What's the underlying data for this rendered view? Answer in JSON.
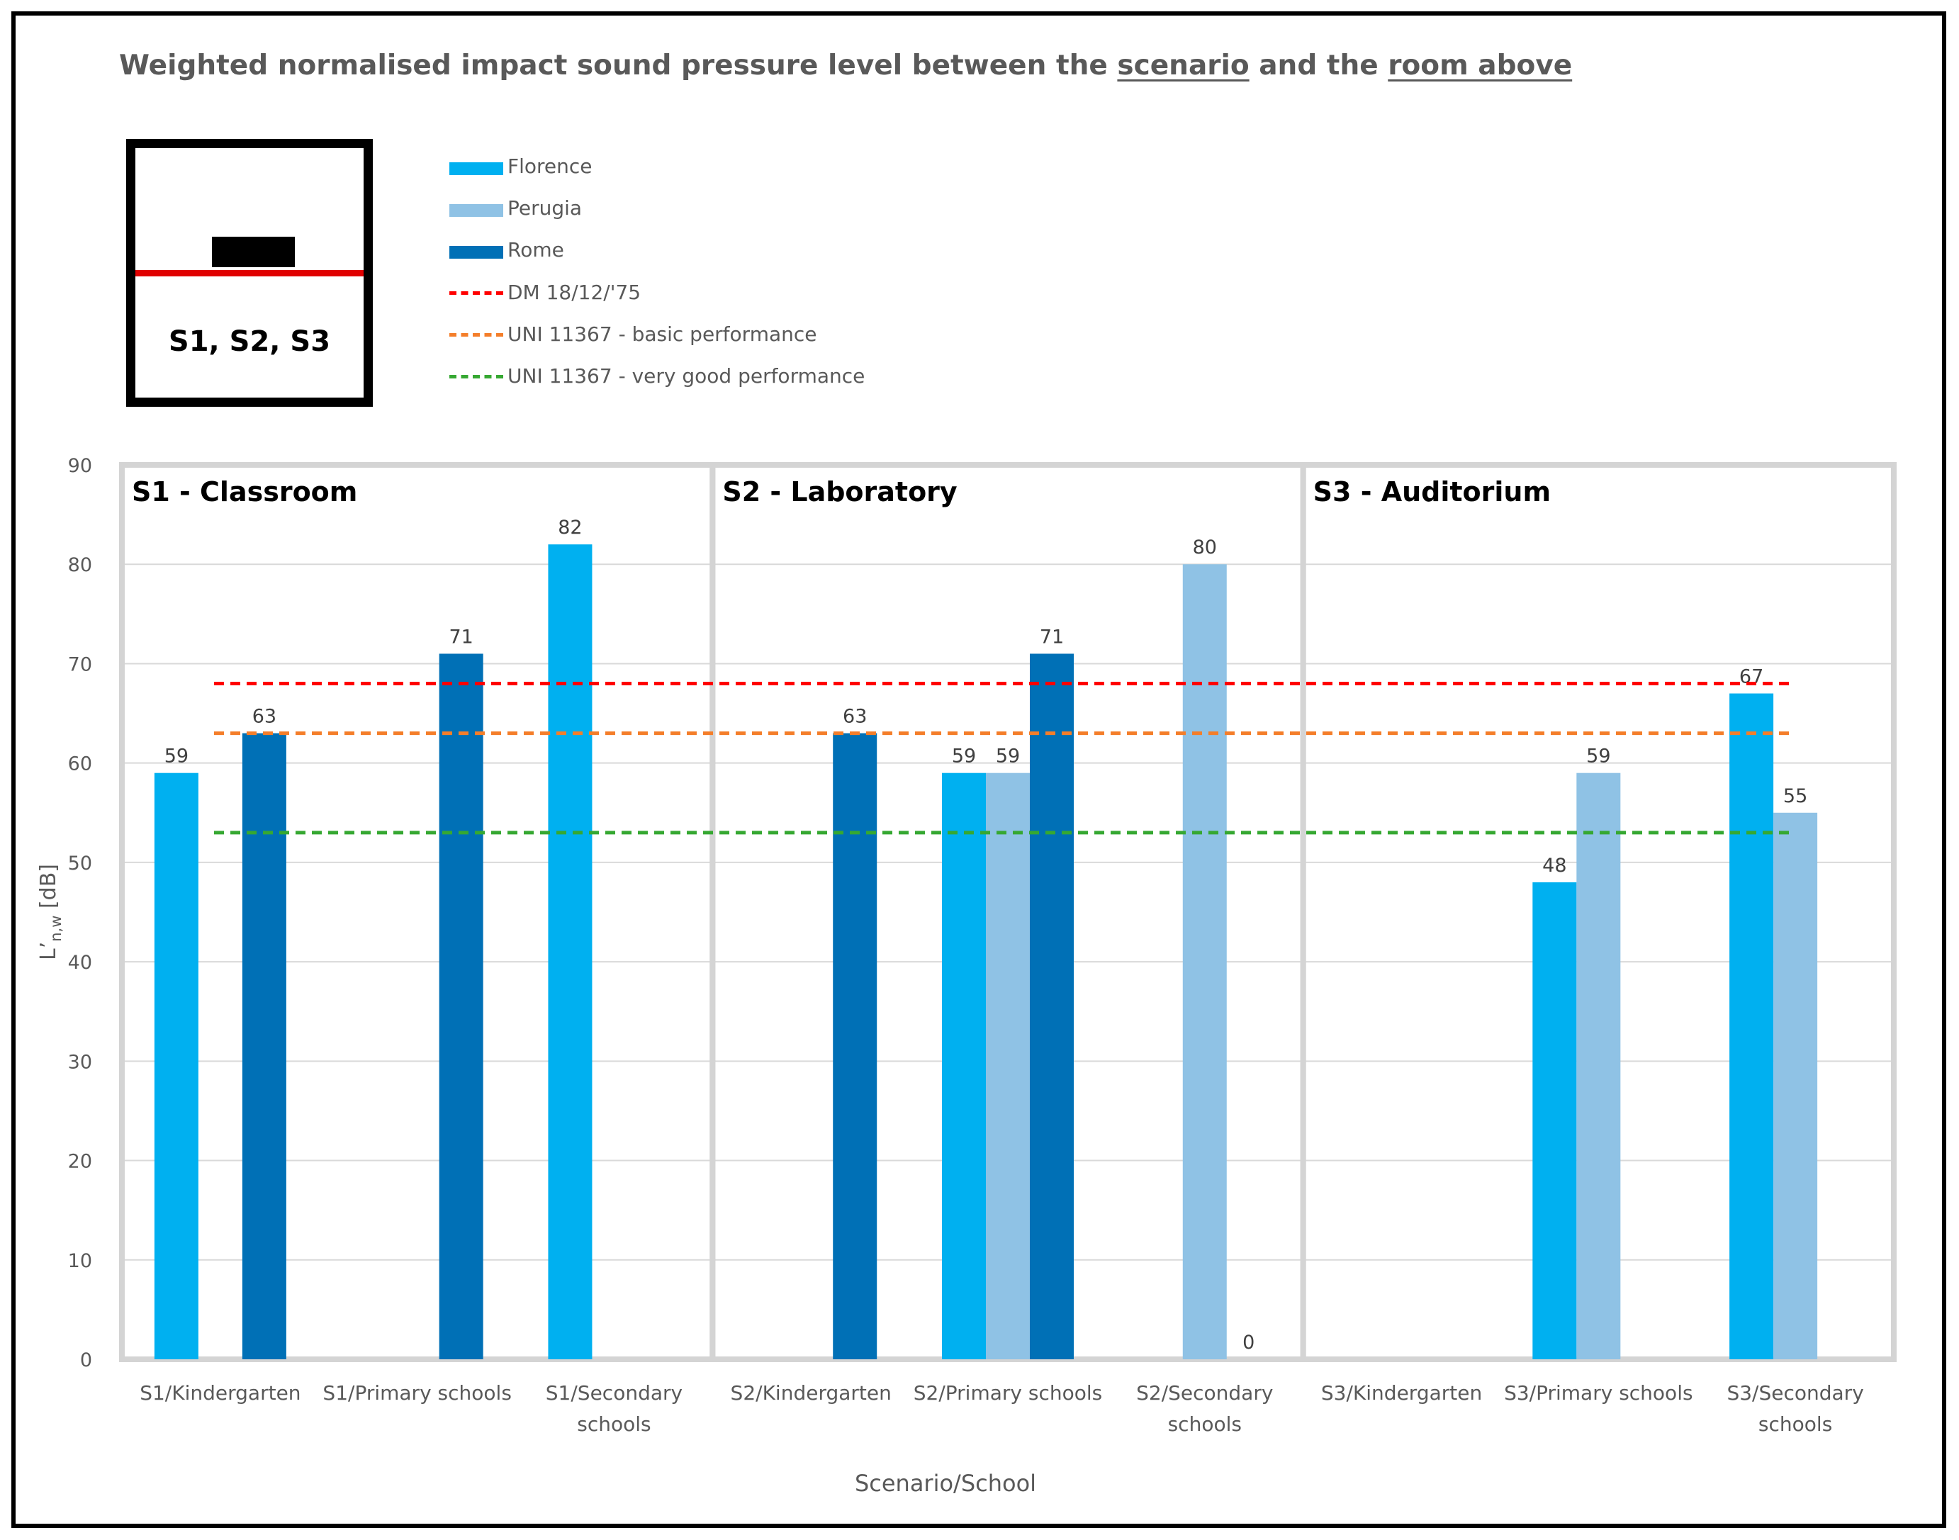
{
  "title": {
    "prefix": "Weighted normalised impact sound pressure level between the ",
    "scenario_word": "scenario",
    "middle": " and the ",
    "room_word": "room above"
  },
  "scenario_icon": {
    "label": "S1, S2, S3"
  },
  "colors": {
    "florence": "#00b0f0",
    "perugia": "#8fc2e5",
    "rome": "#0070b6",
    "dm": "#ff0000",
    "uni_basic": "#f47e2a",
    "uni_very_good": "#36a832",
    "grid": "#d9d9d9",
    "panel_border": "#d4d4d4",
    "text": "#595959"
  },
  "legend": [
    {
      "label": "Florence",
      "kind": "bar",
      "color": "#00b0f0"
    },
    {
      "label": "Perugia",
      "kind": "bar",
      "color": "#8fc2e5"
    },
    {
      "label": "Rome",
      "kind": "bar",
      "color": "#0070b6"
    },
    {
      "label": "DM 18/12/'75",
      "kind": "dashed",
      "color": "#ff0000"
    },
    {
      "label": "UNI 11367 - basic performance",
      "kind": "dashed",
      "color": "#f47e2a"
    },
    {
      "label": "UNI 11367 -  very good performance",
      "kind": "dashed",
      "color": "#36a832"
    }
  ],
  "chart_data": {
    "type": "bar",
    "title": "Weighted normalised impact sound pressure level between the scenario and the room above",
    "xlabel": "Scenario/School",
    "ylabel": "L'n,w [dB]",
    "ylabel_main": "L’",
    "ylabel_sub": "n,w",
    "ylabel_unit": " [dB]",
    "ylim": [
      0,
      90
    ],
    "yticks": [
      0,
      10,
      20,
      30,
      40,
      50,
      60,
      70,
      80,
      90
    ],
    "panels": [
      "S1 - Classroom",
      "S2 - Laboratory",
      "S3 - Auditorium"
    ],
    "categories": [
      [
        "S1/Kindergarten"
      ],
      [
        "S1/Primary schools"
      ],
      [
        "S1/Secondary",
        "schools"
      ],
      [
        "S2/Kindergarten"
      ],
      [
        "S2/Primary schools"
      ],
      [
        "S2/Secondary",
        "schools"
      ],
      [
        "S3/Kindergarten"
      ],
      [
        "S3/Primary schools"
      ],
      [
        "S3/Secondary",
        "schools"
      ]
    ],
    "series": [
      {
        "name": "Florence",
        "values": [
          59,
          null,
          82,
          null,
          59,
          null,
          null,
          48,
          67
        ]
      },
      {
        "name": "Perugia",
        "values": [
          null,
          null,
          null,
          null,
          59,
          80,
          null,
          59,
          55
        ]
      },
      {
        "name": "Rome",
        "values": [
          63,
          71,
          null,
          63,
          71,
          0,
          null,
          null,
          null
        ]
      }
    ],
    "reference_lines": [
      {
        "name": "DM 18/12/'75",
        "value": 68
      },
      {
        "name": "UNI 11367 - basic performance",
        "value": 63
      },
      {
        "name": "UNI 11367 -  very good performance",
        "value": 53
      }
    ]
  }
}
